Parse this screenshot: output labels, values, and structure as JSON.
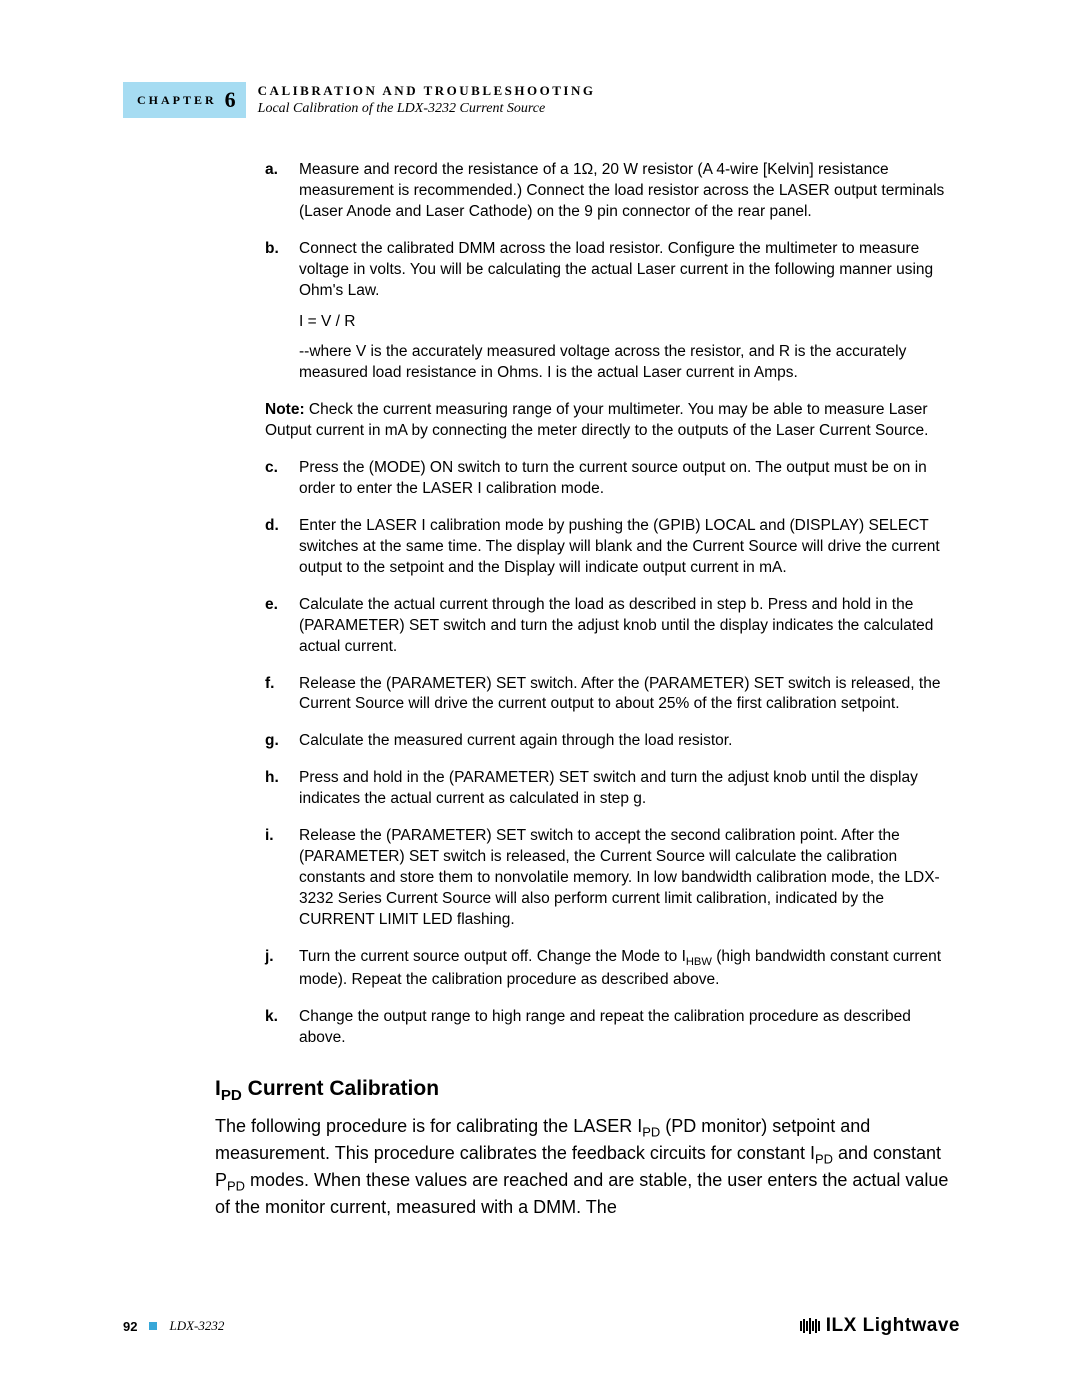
{
  "header": {
    "chapter_label": "CHAPTER",
    "chapter_num": "6",
    "title_top": "CALIBRATION AND TROUBLESHOOTING",
    "title_sub": "Local Calibration of the LDX-3232 Current Source"
  },
  "steps_1": [
    {
      "label": "a.",
      "paras": [
        "Measure and record the resistance of a 1Ω, 20 W resistor (A 4-wire [Kelvin] resistance measurement is recommended.) Connect the load resistor across the LASER output terminals (Laser Anode and Laser Cathode) on the 9 pin connector of the rear panel."
      ]
    },
    {
      "label": "b.",
      "paras": [
        "Connect the calibrated DMM across the load resistor. Configure the multimeter to measure voltage in volts.  You will be calculating the actual Laser current in the following manner using Ohm's Law.",
        "I = V / R",
        "--where V is the accurately measured voltage across the resistor, and R is the accurately measured load resistance in Ohms. I is the actual Laser current in Amps."
      ]
    }
  ],
  "note_label": "Note:",
  "note_text": "  Check the current measuring range of your multimeter. You may be able to measure Laser Output current in mA by connecting the meter directly to the outputs of the Laser Current Source.",
  "steps_2": [
    {
      "label": "c.",
      "paras": [
        "Press the (MODE) ON switch to turn the current source output on. The output must be on in order to enter the LASER I calibration mode."
      ]
    },
    {
      "label": "d.",
      "paras": [
        "Enter the LASER I calibration mode by pushing the (GPIB) LOCAL and (DISPLAY) SELECT switches at the same time. The display will blank and the Current Source will drive the current output to the setpoint and the Display will indicate output current in mA."
      ]
    },
    {
      "label": "e.",
      "paras": [
        "Calculate the actual current through the load as described in step b.  Press and hold in the (PARAMETER) SET switch and turn the adjust knob until the display indicates the calculated actual current."
      ]
    },
    {
      "label": "f.",
      "paras": [
        "Release the (PARAMETER) SET switch. After the (PARAMETER) SET switch is released, the Current Source will drive the current output to about 25% of the first calibration setpoint."
      ]
    },
    {
      "label": "g.",
      "paras": [
        "Calculate the measured current again through the load resistor."
      ]
    },
    {
      "label": "h.",
      "paras": [
        "Press and hold in the (PARAMETER) SET switch and turn the adjust knob until the display indicates the actual current as calculated in step g."
      ]
    },
    {
      "label": "i.",
      "paras": [
        "Release the (PARAMETER) SET switch to accept the second calibration point. After the (PARAMETER) SET switch is released, the Current Source will calculate the calibration constants and store them to nonvolatile memory. In low bandwidth calibration mode, the LDX-3232 Series Current Source will also perform current limit calibration, indicated by the CURRENT LIMIT LED flashing."
      ]
    },
    {
      "label": "j.",
      "html": "Turn the current source output off. Change the Mode to I<sub>HBW</sub> (high bandwidth constant current mode). Repeat the calibration procedure as described above."
    },
    {
      "label": "k.",
      "paras": [
        "Change the output range to high range and repeat the calibration procedure as described above."
      ]
    }
  ],
  "section": {
    "heading_html": "I<sub>PD</sub> Current Calibration",
    "para_html": "The following procedure is for calibrating the LASER I<sub>PD</sub> (PD monitor) setpoint and measurement. This procedure calibrates the feedback circuits for constant I<sub>PD</sub> and constant P<sub>PD</sub> modes. When these values are reached and are stable, the user enters the actual value of the monitor current, measured with a DMM. The"
  },
  "footer": {
    "page_num": "92",
    "model": "LDX-3232",
    "logo_ilx": "ILX",
    "logo_lw": "Lightwave"
  },
  "colors": {
    "tab_bg": "#a6dcf2",
    "square": "#37a7d8",
    "text": "#000000",
    "bg": "#ffffff"
  }
}
